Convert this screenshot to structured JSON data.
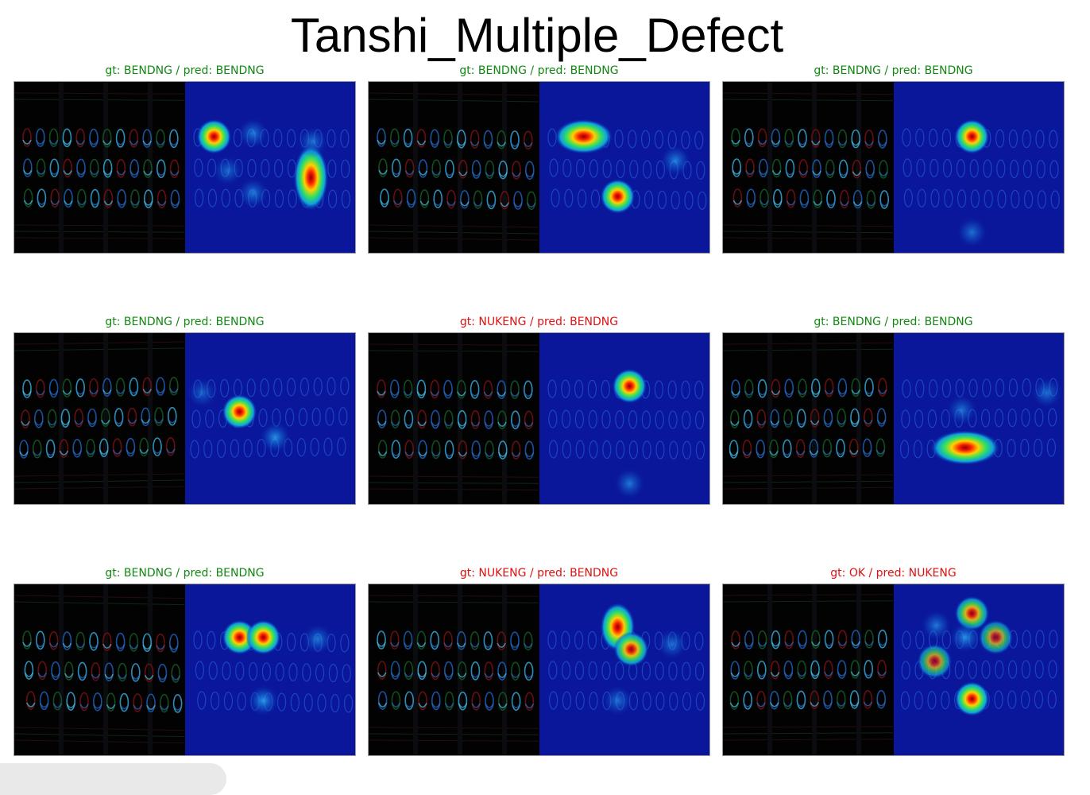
{
  "title": "Tanshi_Multiple_Defect",
  "colors": {
    "correct": "#118811",
    "incorrect": "#e01010"
  },
  "panels": [
    {
      "label": "gt: BENDNG / pred: BENDNG",
      "status": "correct",
      "hotspots": [
        [
          0.17,
          0.32,
          1
        ],
        [
          0.74,
          0.56,
          1,
          1.9
        ],
        [
          0.4,
          0.3,
          0.35
        ],
        [
          0.4,
          0.65,
          0.35
        ],
        [
          0.75,
          0.35,
          0.3
        ],
        [
          0.25,
          0.52,
          0.25
        ]
      ],
      "warp": 0.02
    },
    {
      "label": "gt: BENDNG / pred: BENDNG",
      "status": "correct",
      "hotspots": [
        [
          0.26,
          0.32,
          1,
          0.6
        ],
        [
          0.46,
          0.67,
          1
        ],
        [
          0.8,
          0.46,
          0.4
        ]
      ],
      "warp": 0.05
    },
    {
      "label": "gt: BENDNG / pred: BENDNG",
      "status": "correct",
      "hotspots": [
        [
          0.46,
          0.32,
          1
        ],
        [
          0.46,
          0.88,
          0.3
        ]
      ],
      "warp": 0.03
    },
    {
      "label": "gt: BENDNG / pred: BENDNG",
      "status": "correct",
      "hotspots": [
        [
          0.32,
          0.46,
          1
        ],
        [
          0.53,
          0.61,
          0.5
        ],
        [
          0.1,
          0.35,
          0.2
        ]
      ],
      "warp": -0.05
    },
    {
      "label": "gt: NUKENG / pred: BENDNG",
      "status": "incorrect",
      "hotspots": [
        [
          0.53,
          0.31,
          1
        ],
        [
          0.53,
          0.88,
          0.35
        ]
      ],
      "warp": 0.02
    },
    {
      "label": "gt: BENDNG / pred: BENDNG",
      "status": "correct",
      "hotspots": [
        [
          0.42,
          0.67,
          1,
          0.5
        ],
        [
          0.9,
          0.35,
          0.3
        ],
        [
          0.4,
          0.45,
          0.3
        ]
      ],
      "warp": -0.03
    },
    {
      "label": "gt: BENDNG / pred: BENDNG",
      "status": "correct",
      "hotspots": [
        [
          0.32,
          0.31,
          1
        ],
        [
          0.46,
          0.31,
          1
        ],
        [
          0.78,
          0.32,
          0.35
        ],
        [
          0.46,
          0.68,
          0.55
        ]
      ],
      "warp": 0.06
    },
    {
      "label": "gt: NUKENG / pred: BENDNG",
      "status": "incorrect",
      "hotspots": [
        [
          0.46,
          0.25,
          1,
          1.4
        ],
        [
          0.54,
          0.38,
          0.9
        ],
        [
          0.46,
          0.68,
          0.3
        ],
        [
          0.78,
          0.35,
          0.3
        ]
      ],
      "warp": 0.02
    },
    {
      "label": "gt: OK / pred: NUKENG",
      "status": "incorrect",
      "hotspots": [
        [
          0.46,
          0.17,
          0.85
        ],
        [
          0.24,
          0.45,
          0.7
        ],
        [
          0.46,
          0.67,
          1
        ],
        [
          0.6,
          0.31,
          0.7
        ],
        [
          0.42,
          0.31,
          0.5
        ],
        [
          0.25,
          0.24,
          0.35
        ]
      ],
      "warp": -0.02
    }
  ]
}
